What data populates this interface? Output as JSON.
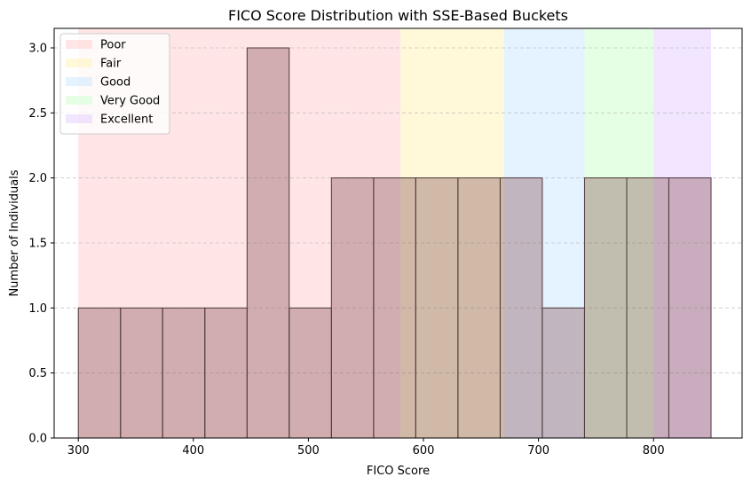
{
  "chart_data": {
    "type": "bar",
    "title": "FICO Score Distribution with SSE-Based Buckets",
    "xlabel": "FICO Score",
    "ylabel": "Number of Individuals",
    "xlim": [
      279,
      877
    ],
    "ylim": [
      0,
      3.15
    ],
    "x_ticks": [
      300,
      400,
      500,
      600,
      700,
      800
    ],
    "y_ticks": [
      0.0,
      0.5,
      1.0,
      1.5,
      2.0,
      2.5,
      3.0
    ],
    "y_tick_labels": [
      "0.0",
      "0.5",
      "1.0",
      "1.5",
      "2.0",
      "2.5",
      "3.0"
    ],
    "grid": "y-dashed",
    "legend_position": "top-left",
    "buckets": [
      {
        "name": "Poor",
        "start": 300,
        "end": 580,
        "color": "#ffcccc"
      },
      {
        "name": "Fair",
        "start": 580,
        "end": 670,
        "color": "#fff2b3"
      },
      {
        "name": "Good",
        "start": 670,
        "end": 740,
        "color": "#cce6ff"
      },
      {
        "name": "Very Good",
        "start": 740,
        "end": 800,
        "color": "#ccffcc"
      },
      {
        "name": "Excellent",
        "start": 800,
        "end": 850,
        "color": "#e6ccff"
      }
    ],
    "bins": [
      {
        "start": 300.0,
        "end": 336.7,
        "count": 1
      },
      {
        "start": 336.7,
        "end": 373.3,
        "count": 1
      },
      {
        "start": 373.3,
        "end": 410.0,
        "count": 1
      },
      {
        "start": 410.0,
        "end": 446.7,
        "count": 1
      },
      {
        "start": 446.7,
        "end": 483.3,
        "count": 3
      },
      {
        "start": 483.3,
        "end": 520.0,
        "count": 1
      },
      {
        "start": 520.0,
        "end": 556.7,
        "count": 2
      },
      {
        "start": 556.7,
        "end": 593.3,
        "count": 2
      },
      {
        "start": 593.3,
        "end": 630.0,
        "count": 2
      },
      {
        "start": 630.0,
        "end": 666.7,
        "count": 2
      },
      {
        "start": 666.7,
        "end": 703.3,
        "count": 2
      },
      {
        "start": 703.3,
        "end": 740.0,
        "count": 1
      },
      {
        "start": 740.0,
        "end": 776.7,
        "count": 2
      },
      {
        "start": 776.7,
        "end": 813.3,
        "count": 2
      },
      {
        "start": 813.3,
        "end": 850.0,
        "count": 2
      }
    ],
    "bar_color": "#8b5a5e",
    "bar_edge_color": "#4d3a3a"
  }
}
